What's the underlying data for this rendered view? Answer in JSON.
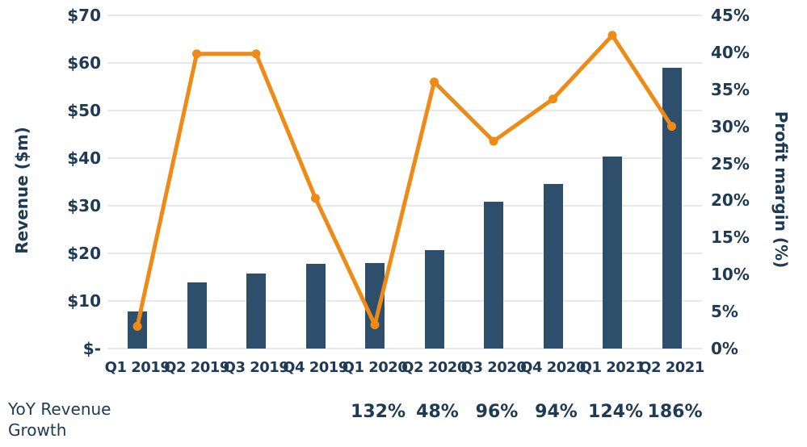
{
  "colors": {
    "text": "#1f3a54",
    "grid": "#e8e8e8",
    "bar_navy": "#2d4f6b",
    "line_orange": "#f08a17",
    "background": "#ffffff"
  },
  "chart_data": {
    "type": "combo-bar-line",
    "title": "",
    "legend": "none",
    "grid": "horizontal",
    "categories": [
      "Q1 2019",
      "Q2 2019",
      "Q3 2019",
      "Q4 2019",
      "Q1 2020",
      "Q2 2020",
      "Q3 2020",
      "Q4 2020",
      "Q1 2021",
      "Q2 2021"
    ],
    "series": [
      {
        "name": "Revenue ($m)",
        "type": "bar",
        "axis": "left",
        "color": "#2d4f6b",
        "values": [
          7.8,
          13.9,
          15.7,
          17.8,
          18.0,
          20.6,
          30.8,
          34.5,
          40.3,
          59.0
        ]
      },
      {
        "name": "Profit margin (%)",
        "type": "line",
        "axis": "right",
        "color": "#f08a17",
        "values": [
          3,
          39.8,
          39.8,
          20.3,
          3.2,
          36,
          28,
          33.7,
          42.3,
          30
        ]
      }
    ],
    "left_axis": {
      "title": "Revenue ($m)",
      "ticks": [
        "$70",
        "$60",
        "$50",
        "$40",
        "$30",
        "$20",
        "$10",
        "$-"
      ],
      "min": 0,
      "max": 70,
      "step": 10
    },
    "right_axis": {
      "title": "Profit margin (%)",
      "ticks": [
        "45%",
        "40%",
        "35%",
        "30%",
        "25%",
        "20%",
        "15%",
        "10%",
        "5%",
        "0%"
      ],
      "min": 0,
      "max": 45,
      "step": 5
    }
  },
  "yoy_growth": {
    "label": "YoY Revenue Growth",
    "start_category": "Q1 2020",
    "values": [
      "132%",
      "48%",
      "96%",
      "94%",
      "124%",
      "186%"
    ]
  }
}
